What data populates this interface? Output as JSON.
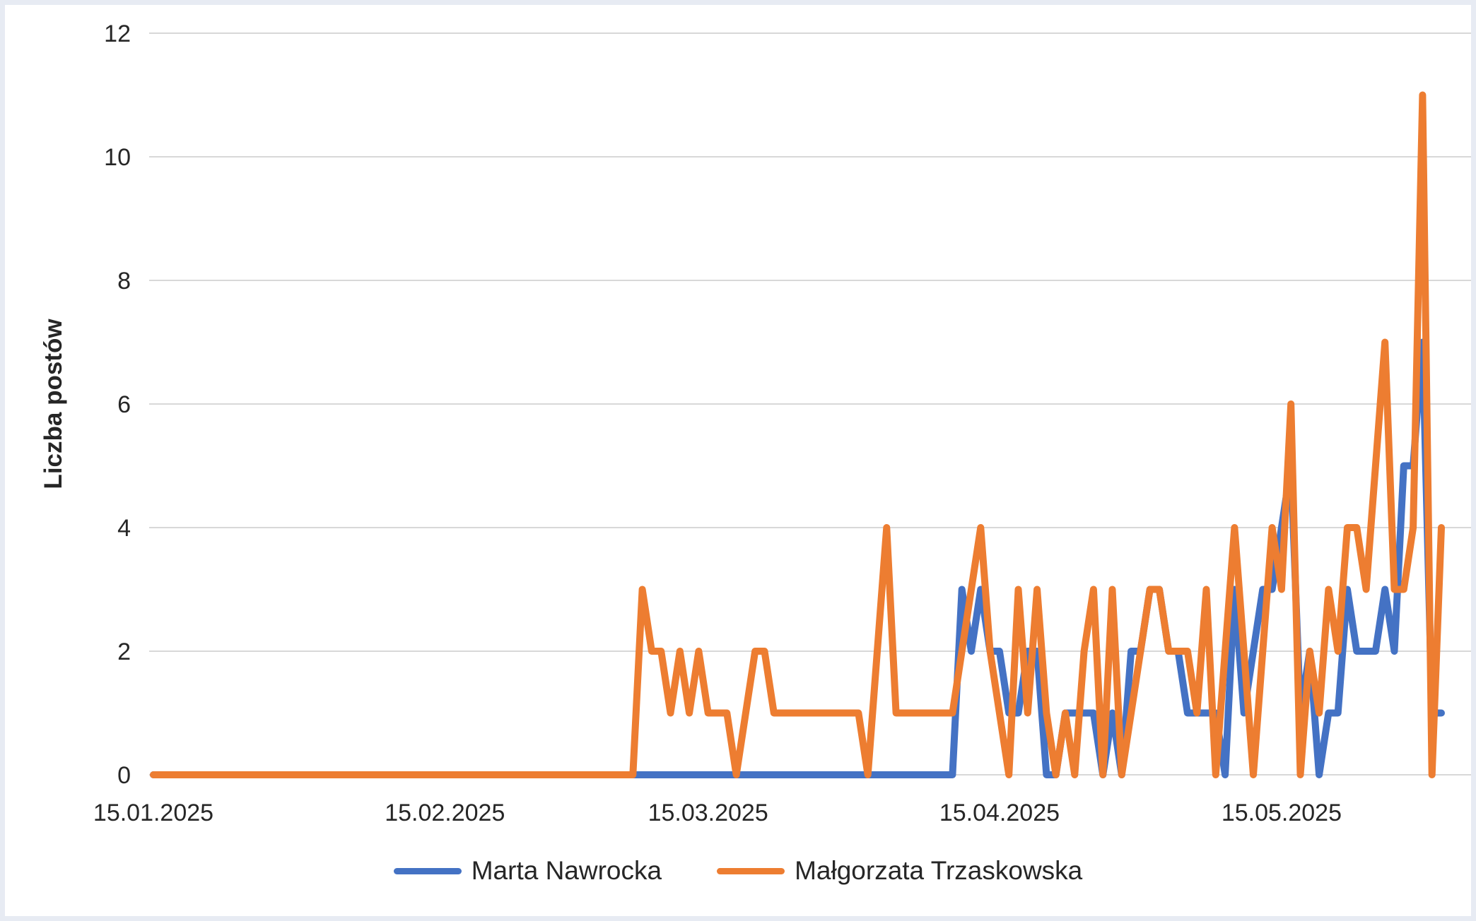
{
  "page": {
    "background": "#ffffff",
    "frame_color": "#e7ebf3"
  },
  "chart_data": {
    "type": "line",
    "title": "",
    "xlabel": "",
    "ylabel": "Liczba postów",
    "ylim": [
      0,
      12
    ],
    "y_ticks": [
      0,
      2,
      4,
      6,
      8,
      10,
      12
    ],
    "grid": true,
    "gridline_color": "#d8d8d8",
    "axis_text_color": "#262626",
    "legend_position": "bottom",
    "start_date": "15.01.2025",
    "end_date": "01.06.2025",
    "points_per_series": 138,
    "x_tick_labels": [
      "15.01.2025",
      "15.02.2025",
      "15.03.2025",
      "15.04.2025",
      "15.05.2025"
    ],
    "x_tick_day_index": [
      0,
      31,
      59,
      90,
      120
    ],
    "series": [
      {
        "name": "Marta Nawrocka",
        "color": "#4472C4",
        "values": [
          0,
          0,
          0,
          0,
          0,
          0,
          0,
          0,
          0,
          0,
          0,
          0,
          0,
          0,
          0,
          0,
          0,
          0,
          0,
          0,
          0,
          0,
          0,
          0,
          0,
          0,
          0,
          0,
          0,
          0,
          0,
          0,
          0,
          0,
          0,
          0,
          0,
          0,
          0,
          0,
          0,
          0,
          0,
          0,
          0,
          0,
          0,
          0,
          0,
          0,
          0,
          0,
          0,
          0,
          0,
          0,
          0,
          0,
          0,
          0,
          0,
          0,
          0,
          0,
          0,
          0,
          0,
          0,
          0,
          0,
          0,
          0,
          0,
          0,
          0,
          0,
          0,
          0,
          0,
          0,
          0,
          0,
          0,
          0,
          0,
          0,
          3,
          2,
          3,
          2,
          2,
          1,
          1,
          2,
          2,
          0,
          0,
          1,
          1,
          1,
          1,
          0,
          1,
          0,
          2,
          2,
          3,
          3,
          2,
          2,
          1,
          1,
          1,
          1,
          0,
          3,
          1,
          2,
          3,
          3,
          4,
          5,
          1,
          2,
          0,
          1,
          1,
          3,
          2,
          2,
          2,
          3,
          2,
          5,
          5,
          7,
          1,
          1
        ]
      },
      {
        "name": "Małgorzata Trzaskowska",
        "color": "#ED7D31",
        "values": [
          0,
          0,
          0,
          0,
          0,
          0,
          0,
          0,
          0,
          0,
          0,
          0,
          0,
          0,
          0,
          0,
          0,
          0,
          0,
          0,
          0,
          0,
          0,
          0,
          0,
          0,
          0,
          0,
          0,
          0,
          0,
          0,
          0,
          0,
          0,
          0,
          0,
          0,
          0,
          0,
          0,
          0,
          0,
          0,
          0,
          0,
          0,
          0,
          0,
          0,
          0,
          0,
          3,
          2,
          2,
          1,
          2,
          1,
          2,
          1,
          1,
          1,
          0,
          1,
          2,
          2,
          1,
          1,
          1,
          1,
          1,
          1,
          1,
          1,
          1,
          1,
          0,
          2,
          4,
          1,
          1,
          1,
          1,
          1,
          1,
          1,
          2,
          3,
          4,
          2,
          1,
          0,
          3,
          1,
          3,
          1,
          0,
          1,
          0,
          2,
          3,
          0,
          3,
          0,
          1,
          2,
          3,
          3,
          2,
          2,
          2,
          1,
          3,
          0,
          2,
          4,
          2,
          0,
          2,
          4,
          3,
          6,
          0,
          2,
          1,
          3,
          2,
          4,
          4,
          3,
          5,
          7,
          3,
          3,
          4,
          11,
          0,
          4
        ]
      }
    ]
  }
}
